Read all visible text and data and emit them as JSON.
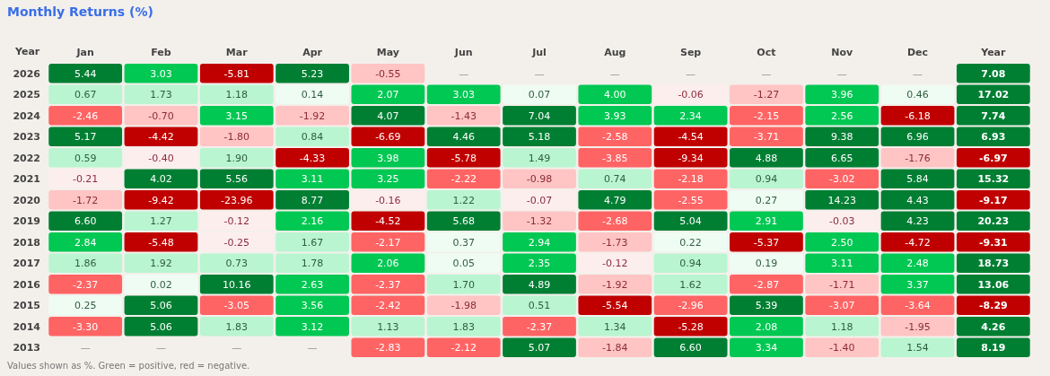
{
  "chart_data": {
    "type": "heatmap",
    "title": "Monthly Returns (%)",
    "ylabel": "Year",
    "categories": [
      "Jan",
      "Feb",
      "Mar",
      "Apr",
      "May",
      "Jun",
      "Jul",
      "Aug",
      "Sep",
      "Oct",
      "Nov",
      "Dec",
      "Year"
    ],
    "y_categories": [
      "2026",
      "2025",
      "2024",
      "2023",
      "2022",
      "2021",
      "2020",
      "2019",
      "2018",
      "2017",
      "2016",
      "2015",
      "2014",
      "2013"
    ],
    "cells": [
      [
        5.44,
        3.03,
        -5.81,
        5.23,
        -0.55,
        null,
        null,
        null,
        null,
        null,
        null,
        null,
        7.08
      ],
      [
        0.67,
        1.73,
        1.18,
        0.14,
        2.07,
        3.03,
        0.07,
        4.0,
        -0.06,
        -1.27,
        3.96,
        0.46,
        17.02
      ],
      [
        -2.46,
        -0.7,
        3.15,
        -1.92,
        4.07,
        -1.43,
        7.04,
        3.93,
        2.34,
        -2.15,
        2.56,
        -6.18,
        7.74
      ],
      [
        5.17,
        -4.42,
        -1.8,
        0.84,
        -6.69,
        4.46,
        5.18,
        -2.58,
        -4.54,
        -3.71,
        9.38,
        6.96,
        6.93
      ],
      [
        0.59,
        -0.4,
        1.9,
        -4.33,
        3.98,
        -5.78,
        1.49,
        -3.85,
        -9.34,
        4.88,
        6.65,
        -1.76,
        -6.97
      ],
      [
        -0.21,
        4.02,
        5.56,
        3.11,
        3.25,
        -2.22,
        -0.98,
        0.74,
        -2.18,
        0.94,
        -3.02,
        5.84,
        15.32
      ],
      [
        -1.72,
        -9.42,
        -23.96,
        8.77,
        -0.16,
        1.22,
        -0.07,
        4.79,
        -2.55,
        0.27,
        14.23,
        4.43,
        -9.17
      ],
      [
        6.6,
        1.27,
        -0.12,
        2.16,
        -4.52,
        5.68,
        -1.32,
        -2.68,
        5.04,
        2.91,
        -0.03,
        4.23,
        20.23
      ],
      [
        2.84,
        -5.48,
        -0.25,
        1.67,
        -2.17,
        0.37,
        2.94,
        -1.73,
        0.22,
        -5.37,
        2.5,
        -4.72,
        -9.31
      ],
      [
        1.86,
        1.92,
        0.73,
        1.78,
        2.06,
        0.05,
        2.35,
        -0.12,
        0.94,
        0.19,
        3.11,
        2.48,
        18.73
      ],
      [
        -2.37,
        0.02,
        10.16,
        2.63,
        -2.37,
        1.7,
        4.89,
        -1.92,
        1.62,
        -2.87,
        -1.71,
        3.37,
        13.06
      ],
      [
        0.25,
        5.06,
        -3.05,
        3.56,
        -2.42,
        -1.98,
        0.51,
        -5.54,
        -2.96,
        5.39,
        -3.07,
        -3.64,
        -8.29
      ],
      [
        -3.3,
        5.06,
        1.83,
        3.12,
        1.13,
        1.83,
        -2.37,
        1.34,
        -5.28,
        2.08,
        1.18,
        -1.95,
        4.26
      ],
      [
        null,
        null,
        null,
        null,
        -2.83,
        -2.12,
        5.07,
        -1.84,
        6.6,
        3.34,
        -1.4,
        1.54,
        8.19
      ]
    ],
    "cell_labels": [
      [
        "5.44",
        "3.03",
        "-5.81",
        "5.23",
        "-0.55",
        "—",
        "—",
        "—",
        "—",
        "—",
        "—",
        "—",
        "7.08"
      ],
      [
        "0.67",
        "1.73",
        "1.18",
        "0.14",
        "2.07",
        "3.03",
        "0.07",
        "4.00",
        "-0.06",
        "-1.27",
        "3.96",
        "0.46",
        "17.02"
      ],
      [
        "-2.46",
        "-0.70",
        "3.15",
        "-1.92",
        "4.07",
        "-1.43",
        "7.04",
        "3.93",
        "2.34",
        "-2.15",
        "2.56",
        "-6.18",
        "7.74"
      ],
      [
        "5.17",
        "-4.42",
        "-1.80",
        "0.84",
        "-6.69",
        "4.46",
        "5.18",
        "-2.58",
        "-4.54",
        "-3.71",
        "9.38",
        "6.96",
        "6.93"
      ],
      [
        "0.59",
        "-0.40",
        "1.90",
        "-4.33",
        "3.98",
        "-5.78",
        "1.49",
        "-3.85",
        "-9.34",
        "4.88",
        "6.65",
        "-1.76",
        "-6.97"
      ],
      [
        "-0.21",
        "4.02",
        "5.56",
        "3.11",
        "3.25",
        "-2.22",
        "-0.98",
        "0.74",
        "-2.18",
        "0.94",
        "-3.02",
        "5.84",
        "15.32"
      ],
      [
        "-1.72",
        "-9.42",
        "-23.96",
        "8.77",
        "-0.16",
        "1.22",
        "-0.07",
        "4.79",
        "-2.55",
        "0.27",
        "14.23",
        "4.43",
        "-9.17"
      ],
      [
        "6.60",
        "1.27",
        "-0.12",
        "2.16",
        "-4.52",
        "5.68",
        "-1.32",
        "-2.68",
        "5.04",
        "2.91",
        "-0.03",
        "4.23",
        "20.23"
      ],
      [
        "2.84",
        "-5.48",
        "-0.25",
        "1.67",
        "-2.17",
        "0.37",
        "2.94",
        "-1.73",
        "0.22",
        "-5.37",
        "2.50",
        "-4.72",
        "-9.31"
      ],
      [
        "1.86",
        "1.92",
        "0.73",
        "1.78",
        "2.06",
        "0.05",
        "2.35",
        "-0.12",
        "0.94",
        "0.19",
        "3.11",
        "2.48",
        "18.73"
      ],
      [
        "-2.37",
        "0.02",
        "10.16",
        "2.63",
        "-2.37",
        "1.70",
        "4.89",
        "-1.92",
        "1.62",
        "-2.87",
        "-1.71",
        "3.37",
        "13.06"
      ],
      [
        "0.25",
        "5.06",
        "-3.05",
        "3.56",
        "-2.42",
        "-1.98",
        "0.51",
        "-5.54",
        "-2.96",
        "5.39",
        "-3.07",
        "-3.64",
        "-8.29"
      ],
      [
        "-3.30",
        "5.06",
        "1.83",
        "3.12",
        "1.13",
        "1.83",
        "-2.37",
        "1.34",
        "-5.28",
        "2.08",
        "1.18",
        "-1.95",
        "4.26"
      ],
      [
        "—",
        "—",
        "—",
        "—",
        "-2.83",
        "-2.12",
        "5.07",
        "-1.84",
        "6.60",
        "3.34",
        "-1.40",
        "1.54",
        "8.19"
      ]
    ],
    "annotations": [
      "Values shown as %. Green = positive, red = negative."
    ]
  }
}
